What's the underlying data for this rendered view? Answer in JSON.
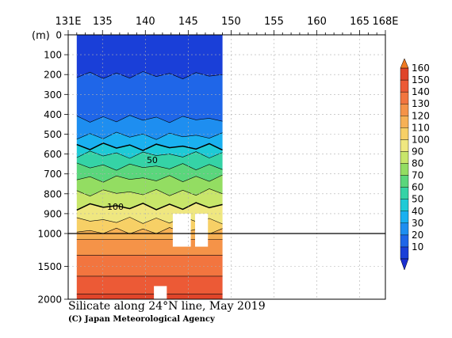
{
  "chart_data": {
    "type": "heatmap",
    "title": "Silicate along 24°N line, May 2019",
    "credit": "(C) Japan Meteorological Agency",
    "x_ticks": [
      "131E",
      "135",
      "140",
      "145",
      "150",
      "155",
      "160",
      "165",
      "168E"
    ],
    "x_tick_values": [
      131,
      135,
      140,
      145,
      150,
      155,
      160,
      165,
      168
    ],
    "xlim": [
      131,
      168
    ],
    "y_unit_label": "(m)",
    "y_ticks_upper": [
      "0",
      "100",
      "200",
      "300",
      "400",
      "500",
      "600",
      "700",
      "800",
      "900",
      "1000"
    ],
    "y_ticks_lower": [
      "1500",
      "2000"
    ],
    "ylim": [
      0,
      2000
    ],
    "y_break_depth": 1000,
    "data_extent_lon": [
      132,
      149
    ],
    "colorbar": {
      "levels": [
        10,
        20,
        30,
        40,
        50,
        60,
        70,
        80,
        90,
        100,
        110,
        120,
        130,
        140,
        150,
        160
      ],
      "labels": [
        "160",
        "150",
        "140",
        "130",
        "120",
        "110",
        "100",
        "90",
        "80",
        "70",
        "60",
        "50",
        "40",
        "30",
        "20",
        "10"
      ],
      "colors": [
        "#1a3fd8",
        "#1f66e8",
        "#1e8ef0",
        "#1ab0f0",
        "#1ecad6",
        "#35d3a6",
        "#5ad67c",
        "#93dd62",
        "#c8e66a",
        "#efe780",
        "#f7d066",
        "#f6b155",
        "#f59348",
        "#f2753f",
        "#ec5a36",
        "#e0452a"
      ]
    },
    "contour_labels": [
      "50",
      "100"
    ],
    "x_grid": true,
    "y_grid": true
  }
}
